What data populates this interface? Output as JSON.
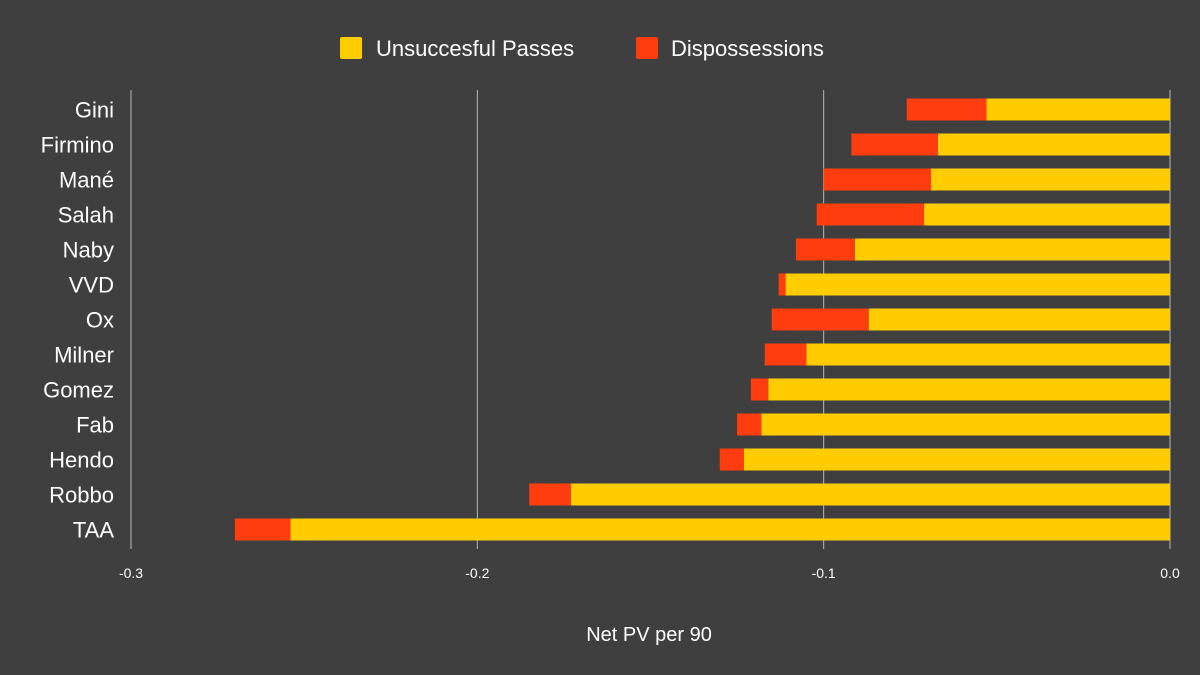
{
  "chart_data": {
    "type": "bar",
    "orientation": "horizontal",
    "stacked": true,
    "categories": [
      "Gini",
      "Firmino",
      "Mané",
      "Salah",
      "Naby",
      "VVD",
      "Ox",
      "Milner",
      "Gomez",
      "Fab",
      "Hendo",
      "Robbo",
      "TAA"
    ],
    "series": [
      {
        "name": "Unsuccesful Passes",
        "color": "#ffcc00",
        "values": [
          -0.053,
          -0.067,
          -0.069,
          -0.071,
          -0.091,
          -0.111,
          -0.087,
          -0.105,
          -0.116,
          -0.118,
          -0.123,
          -0.173,
          -0.254
        ]
      },
      {
        "name": "Dispossessions",
        "color": "#ff3d0f",
        "values": [
          -0.023,
          -0.025,
          -0.031,
          -0.031,
          -0.017,
          -0.002,
          -0.028,
          -0.012,
          -0.005,
          -0.007,
          -0.007,
          -0.012,
          -0.016
        ]
      }
    ],
    "xlabel": "Net PV per 90",
    "ylabel": "",
    "xlim": [
      -0.3,
      0.0
    ],
    "xticks": [
      "-0.3",
      "-0.2",
      "-0.1",
      "0.0"
    ],
    "xtick_values": [
      -0.3,
      -0.2,
      -0.1,
      0.0
    ],
    "grid": true,
    "legend_position": "top-center"
  },
  "colors": {
    "background": "#3f3f3f",
    "gridline": "#b8b8b8",
    "text": "#ffffff"
  }
}
